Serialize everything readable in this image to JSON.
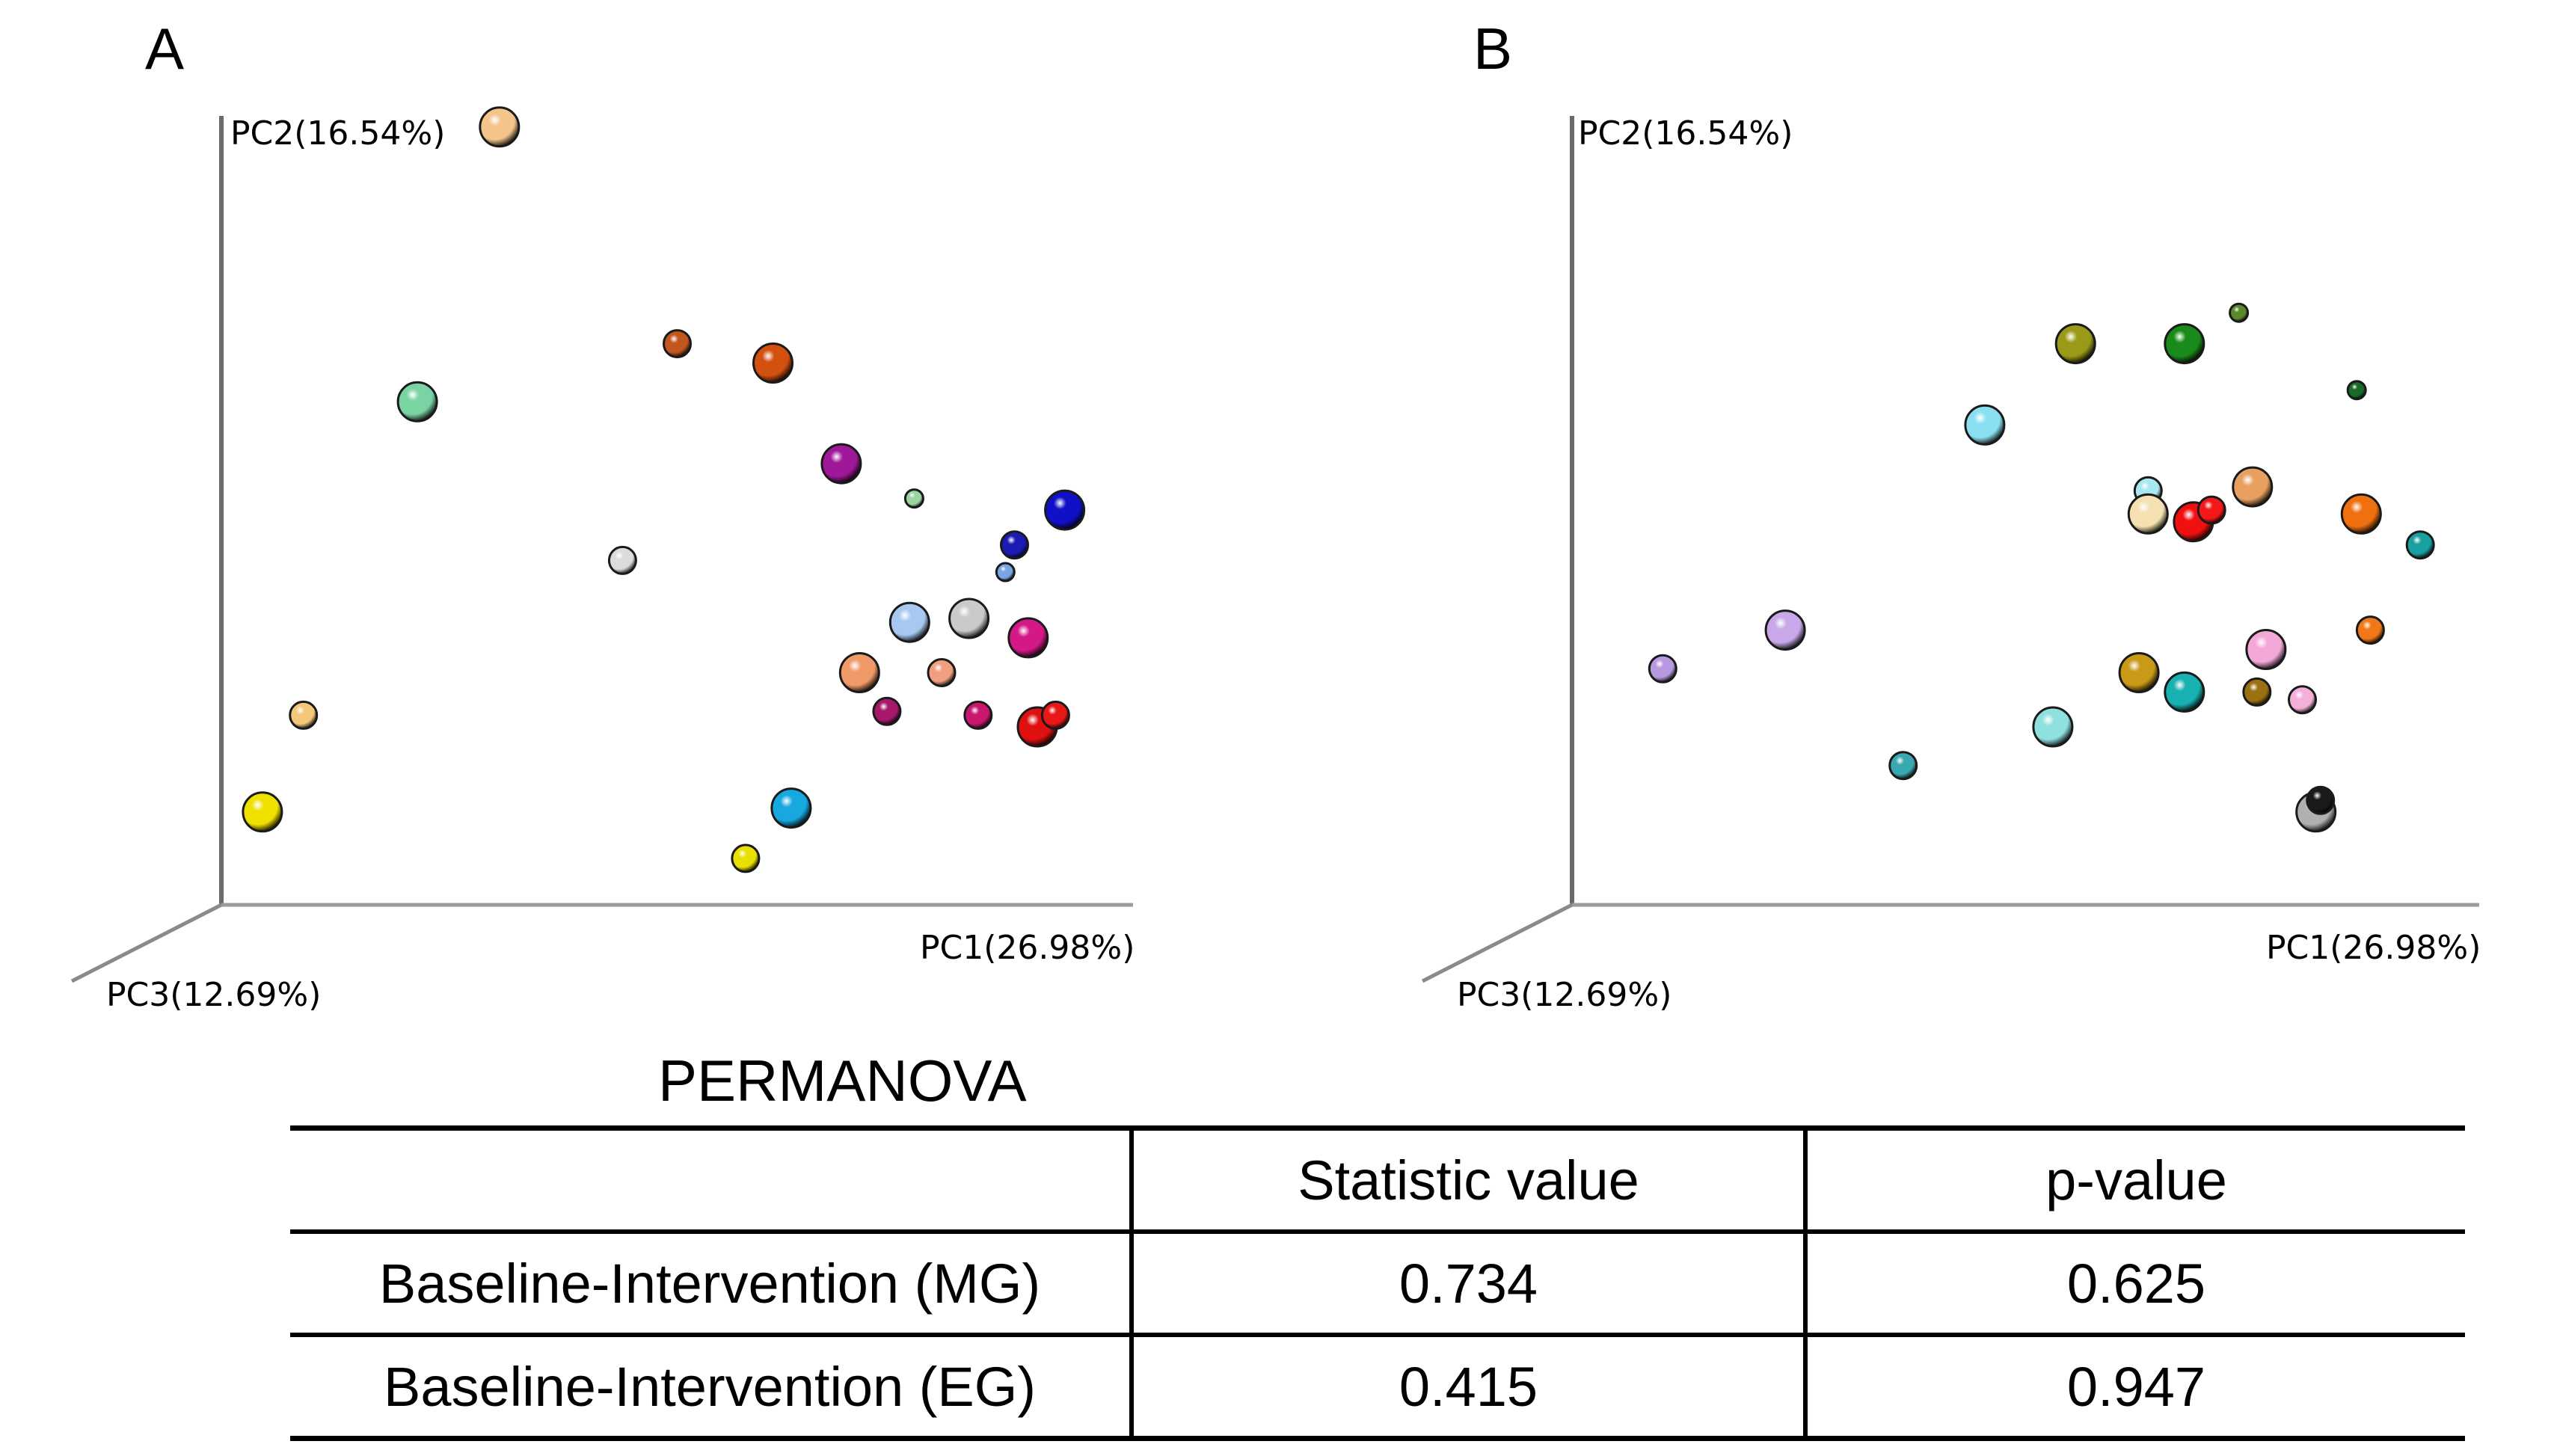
{
  "chart_data": [
    {
      "type": "scatter",
      "panel": "A",
      "projection": "3D PCoA",
      "xlabel": "PC1(26.98%)",
      "ylabel": "PC2(16.54%)",
      "zlabel": "PC3(12.69%)",
      "xlim": [
        0,
        100
      ],
      "ylim": [
        0,
        100
      ],
      "points": [
        {
          "x": 30.5,
          "y": 100.5,
          "size": 3,
          "color": "#f4c48a"
        },
        {
          "x": 21.5,
          "y": 65.0,
          "size": 3,
          "color": "#7ad3a3"
        },
        {
          "x": 50.0,
          "y": 72.5,
          "size": 2,
          "color": "#c2561e"
        },
        {
          "x": 60.5,
          "y": 70.0,
          "size": 3,
          "color": "#d4500e"
        },
        {
          "x": 68.0,
          "y": 57.0,
          "size": 3,
          "color": "#a0189a"
        },
        {
          "x": 76.0,
          "y": 52.5,
          "size": 1,
          "color": "#9ad4a0"
        },
        {
          "x": 92.5,
          "y": 51.0,
          "size": 3,
          "color": "#1010c8"
        },
        {
          "x": 87.0,
          "y": 46.5,
          "size": 2,
          "color": "#1a1ab4"
        },
        {
          "x": 44.0,
          "y": 44.5,
          "size": 2,
          "color": "#dcdcdc"
        },
        {
          "x": 86.0,
          "y": 43.0,
          "size": 1,
          "color": "#7aa4e4"
        },
        {
          "x": 75.5,
          "y": 36.5,
          "size": 3,
          "color": "#a8c8f0"
        },
        {
          "x": 82.0,
          "y": 37.0,
          "size": 3,
          "color": "#cacaca"
        },
        {
          "x": 88.5,
          "y": 34.5,
          "size": 3,
          "color": "#d41888"
        },
        {
          "x": 70.0,
          "y": 30.0,
          "size": 3,
          "color": "#f09a6a"
        },
        {
          "x": 79.0,
          "y": 30.0,
          "size": 2,
          "color": "#f0a080"
        },
        {
          "x": 73.0,
          "y": 25.0,
          "size": 2,
          "color": "#a8186a"
        },
        {
          "x": 83.0,
          "y": 24.5,
          "size": 2,
          "color": "#c81870"
        },
        {
          "x": 89.5,
          "y": 23.0,
          "size": 3,
          "color": "#e01010"
        },
        {
          "x": 91.5,
          "y": 24.5,
          "size": 2,
          "color": "#e81818"
        },
        {
          "x": 9.0,
          "y": 24.5,
          "size": 2,
          "color": "#f4c87a"
        },
        {
          "x": 4.5,
          "y": 12.0,
          "size": 3,
          "color": "#f0e000"
        },
        {
          "x": 62.5,
          "y": 12.5,
          "size": 3,
          "color": "#18a8e0"
        },
        {
          "x": 57.5,
          "y": 6.0,
          "size": 2,
          "color": "#e8e000"
        }
      ]
    },
    {
      "type": "scatter",
      "panel": "B",
      "projection": "3D PCoA",
      "xlabel": "PC1(26.98%)",
      "ylabel": "PC2(16.54%)",
      "zlabel": "PC3(12.69%)",
      "xlim": [
        0,
        100
      ],
      "ylim": [
        0,
        100
      ],
      "points": [
        {
          "x": 73.5,
          "y": 76.5,
          "size": 1,
          "color": "#5a8a2a"
        },
        {
          "x": 55.5,
          "y": 72.5,
          "size": 3,
          "color": "#9a9a18"
        },
        {
          "x": 67.5,
          "y": 72.5,
          "size": 3,
          "color": "#1a8a1a"
        },
        {
          "x": 86.5,
          "y": 66.5,
          "size": 1,
          "color": "#1a6a2a"
        },
        {
          "x": 45.5,
          "y": 62.0,
          "size": 3,
          "color": "#8ae0f0"
        },
        {
          "x": 63.5,
          "y": 53.5,
          "size": 2,
          "color": "#a8e8f0"
        },
        {
          "x": 63.5,
          "y": 50.5,
          "size": 3,
          "color": "#f4e0b0"
        },
        {
          "x": 68.5,
          "y": 49.5,
          "size": 3,
          "color": "#f01010"
        },
        {
          "x": 70.5,
          "y": 51.0,
          "size": 2,
          "color": "#f41818"
        },
        {
          "x": 75.0,
          "y": 54.0,
          "size": 3,
          "color": "#e8a060"
        },
        {
          "x": 87.0,
          "y": 50.5,
          "size": 3,
          "color": "#f07010"
        },
        {
          "x": 93.5,
          "y": 46.5,
          "size": 2,
          "color": "#1aa0a0"
        },
        {
          "x": 88.0,
          "y": 35.5,
          "size": 2,
          "color": "#f07818"
        },
        {
          "x": 23.5,
          "y": 35.5,
          "size": 3,
          "color": "#c8a8e8"
        },
        {
          "x": 10.0,
          "y": 30.5,
          "size": 2,
          "color": "#b898e0"
        },
        {
          "x": 76.5,
          "y": 33.0,
          "size": 3,
          "color": "#f4a8d8"
        },
        {
          "x": 62.5,
          "y": 30.0,
          "size": 3,
          "color": "#c89a18"
        },
        {
          "x": 67.5,
          "y": 27.5,
          "size": 3,
          "color": "#18b0b0"
        },
        {
          "x": 75.5,
          "y": 27.5,
          "size": 2,
          "color": "#9a7010"
        },
        {
          "x": 80.5,
          "y": 26.5,
          "size": 2,
          "color": "#f4b0d8"
        },
        {
          "x": 53.0,
          "y": 23.0,
          "size": 3,
          "color": "#90e0e0"
        },
        {
          "x": 36.5,
          "y": 18.0,
          "size": 2,
          "color": "#3aa8b0"
        },
        {
          "x": 82.0,
          "y": 12.0,
          "size": 3,
          "color": "#b0b0b0"
        },
        {
          "x": 82.5,
          "y": 13.5,
          "size": 2,
          "color": "#1a1a1a"
        }
      ]
    },
    {
      "type": "table",
      "title": "PERMANOVA",
      "columns": [
        "",
        "Statistic value",
        "p-value"
      ],
      "rows": [
        [
          "Baseline-Intervention (MG)",
          "0.734",
          "0.625"
        ],
        [
          "Baseline-Intervention (EG)",
          "0.415",
          "0.947"
        ]
      ]
    }
  ],
  "panels": [
    {
      "letter": "A",
      "pc1": "PC1(26.98%)",
      "pc2": "PC2(16.54%)",
      "pc3": "PC3(12.69%)"
    },
    {
      "letter": "B",
      "pc1": "PC1(26.98%)",
      "pc2": "PC2(16.54%)",
      "pc3": "PC3(12.69%)"
    }
  ],
  "permanova": {
    "title": "PERMANOVA",
    "header": [
      "",
      "Statistic value",
      "p-value"
    ],
    "rows": [
      {
        "label": "Baseline-Intervention (MG)",
        "statistic": "0.734",
        "pvalue": "0.625"
      },
      {
        "label": "Baseline-Intervention (EG)",
        "statistic": "0.415",
        "pvalue": "0.947"
      }
    ]
  }
}
